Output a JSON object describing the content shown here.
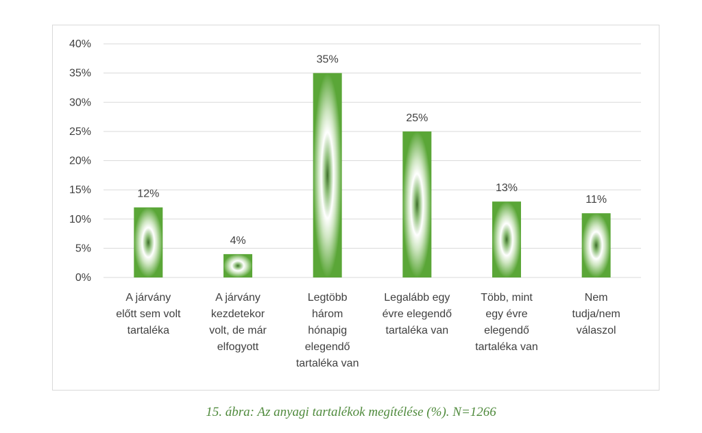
{
  "chart_data": {
    "type": "bar",
    "categories": [
      [
        "A járvány",
        "előtt sem volt",
        "tartaléka"
      ],
      [
        "A járvány",
        "kezdetekor",
        "volt, de már",
        "elfogyott"
      ],
      [
        "Legtöbb",
        "három",
        "hónapig",
        "elegendő",
        "tartaléka van"
      ],
      [
        "Legalább egy",
        "évre elegendő",
        "tartaléka van"
      ],
      [
        "Több, mint",
        "egy évre",
        "elegendő",
        "tartaléka van"
      ],
      [
        "Nem",
        "tudja/nem",
        "válaszol"
      ]
    ],
    "values": [
      12,
      4,
      35,
      25,
      13,
      11
    ],
    "data_labels": [
      "12%",
      "4%",
      "35%",
      "25%",
      "13%",
      "11%"
    ],
    "yticks": [
      "0%",
      "5%",
      "10%",
      "15%",
      "20%",
      "25%",
      "30%",
      "35%",
      "40%"
    ],
    "ylim": [
      0,
      40
    ],
    "grid": true,
    "colors": {
      "bar": "#5aa637",
      "bar_center": "#ffffff",
      "grid": "#d9d9d9",
      "text": "#404040",
      "caption": "#4f8a3c"
    }
  },
  "caption": "15. ábra: Az anyagi tartalékok megítélése (%). N=1266"
}
